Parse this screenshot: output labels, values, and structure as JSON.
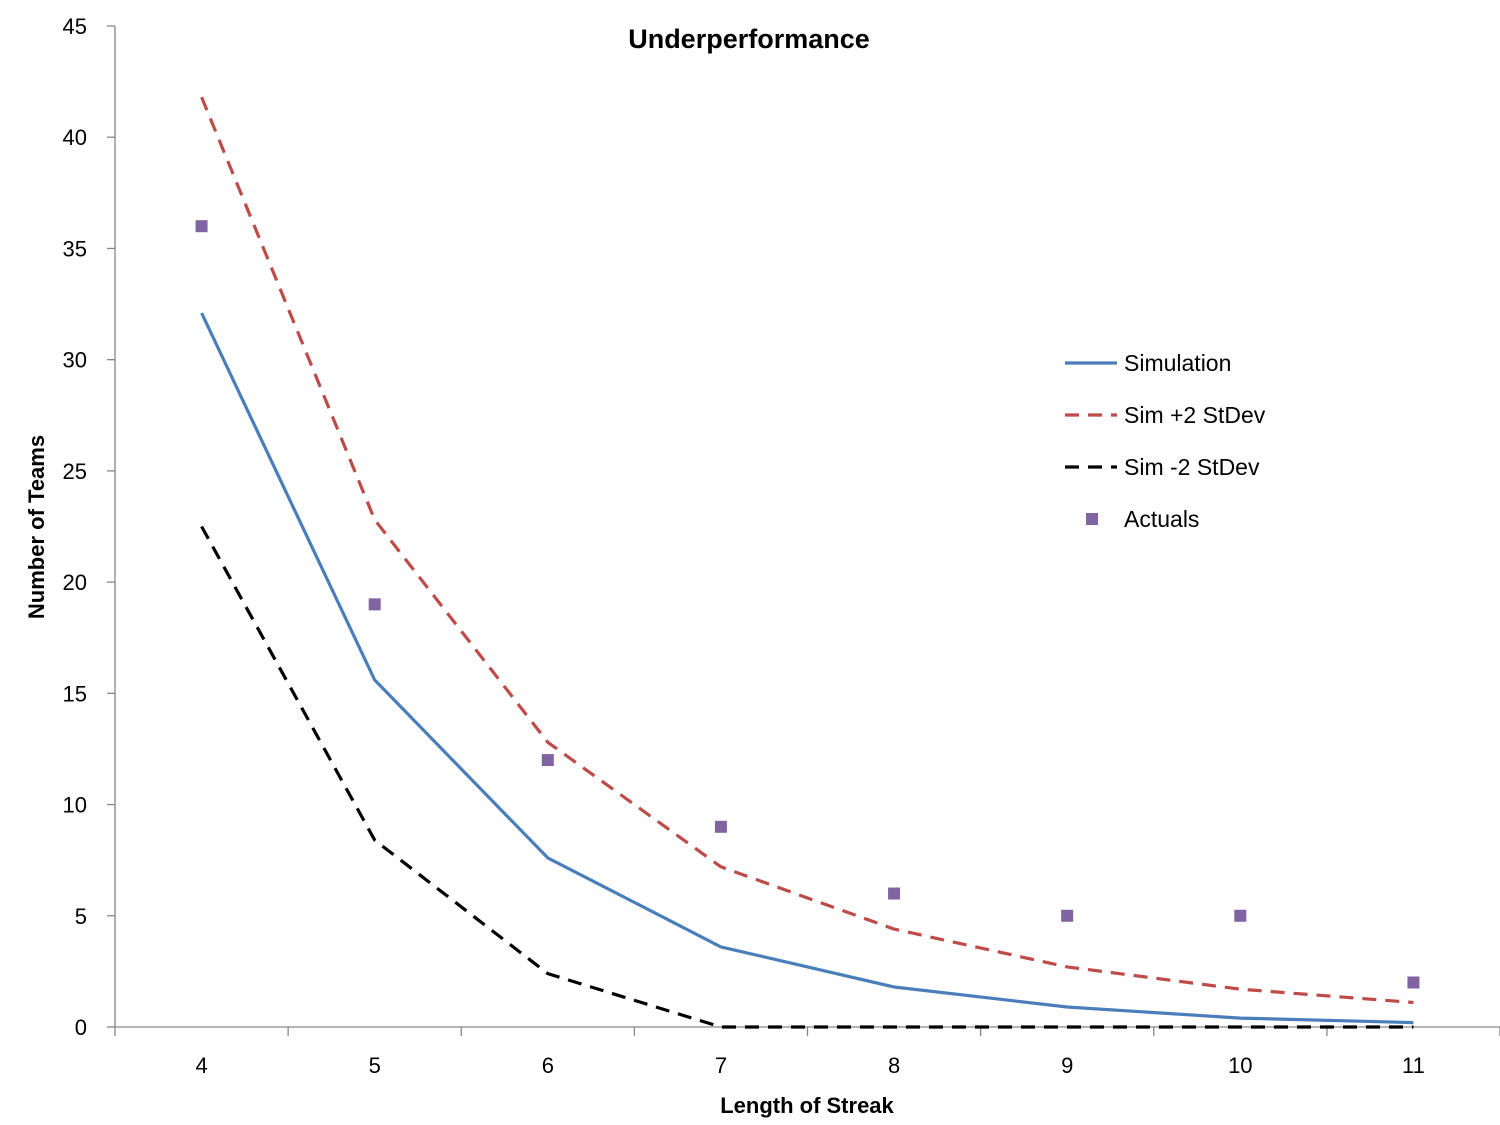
{
  "chart_data": {
    "type": "line",
    "title": "Underperformance",
    "xlabel": "Length of Streak",
    "ylabel": "Number of Teams",
    "x": [
      4,
      5,
      6,
      7,
      8,
      9,
      10,
      11
    ],
    "ylim": [
      0,
      45
    ],
    "yticks": [
      0,
      5,
      10,
      15,
      20,
      25,
      30,
      35,
      40,
      45
    ],
    "grid": false,
    "legend_position": "right",
    "series": [
      {
        "name": "Simulation",
        "style": "solid-line",
        "color": "#4A7EBB",
        "values": [
          32.1,
          15.6,
          7.6,
          3.6,
          1.8,
          0.9,
          0.4,
          0.2
        ]
      },
      {
        "name": "Sim +2 StDev",
        "style": "dashed-line",
        "color": "#BE4B48",
        "values": [
          41.8,
          22.8,
          12.8,
          7.2,
          4.4,
          2.7,
          1.7,
          1.1
        ]
      },
      {
        "name": "Sim -2 StDev",
        "style": "dashed-line",
        "color": "#000000",
        "values": [
          22.5,
          8.4,
          2.4,
          0,
          0,
          0,
          0,
          0
        ]
      },
      {
        "name": "Actuals",
        "style": "markers",
        "color": "#8064A2",
        "values": [
          36,
          19,
          12,
          9,
          6,
          5,
          5,
          2
        ]
      }
    ]
  }
}
